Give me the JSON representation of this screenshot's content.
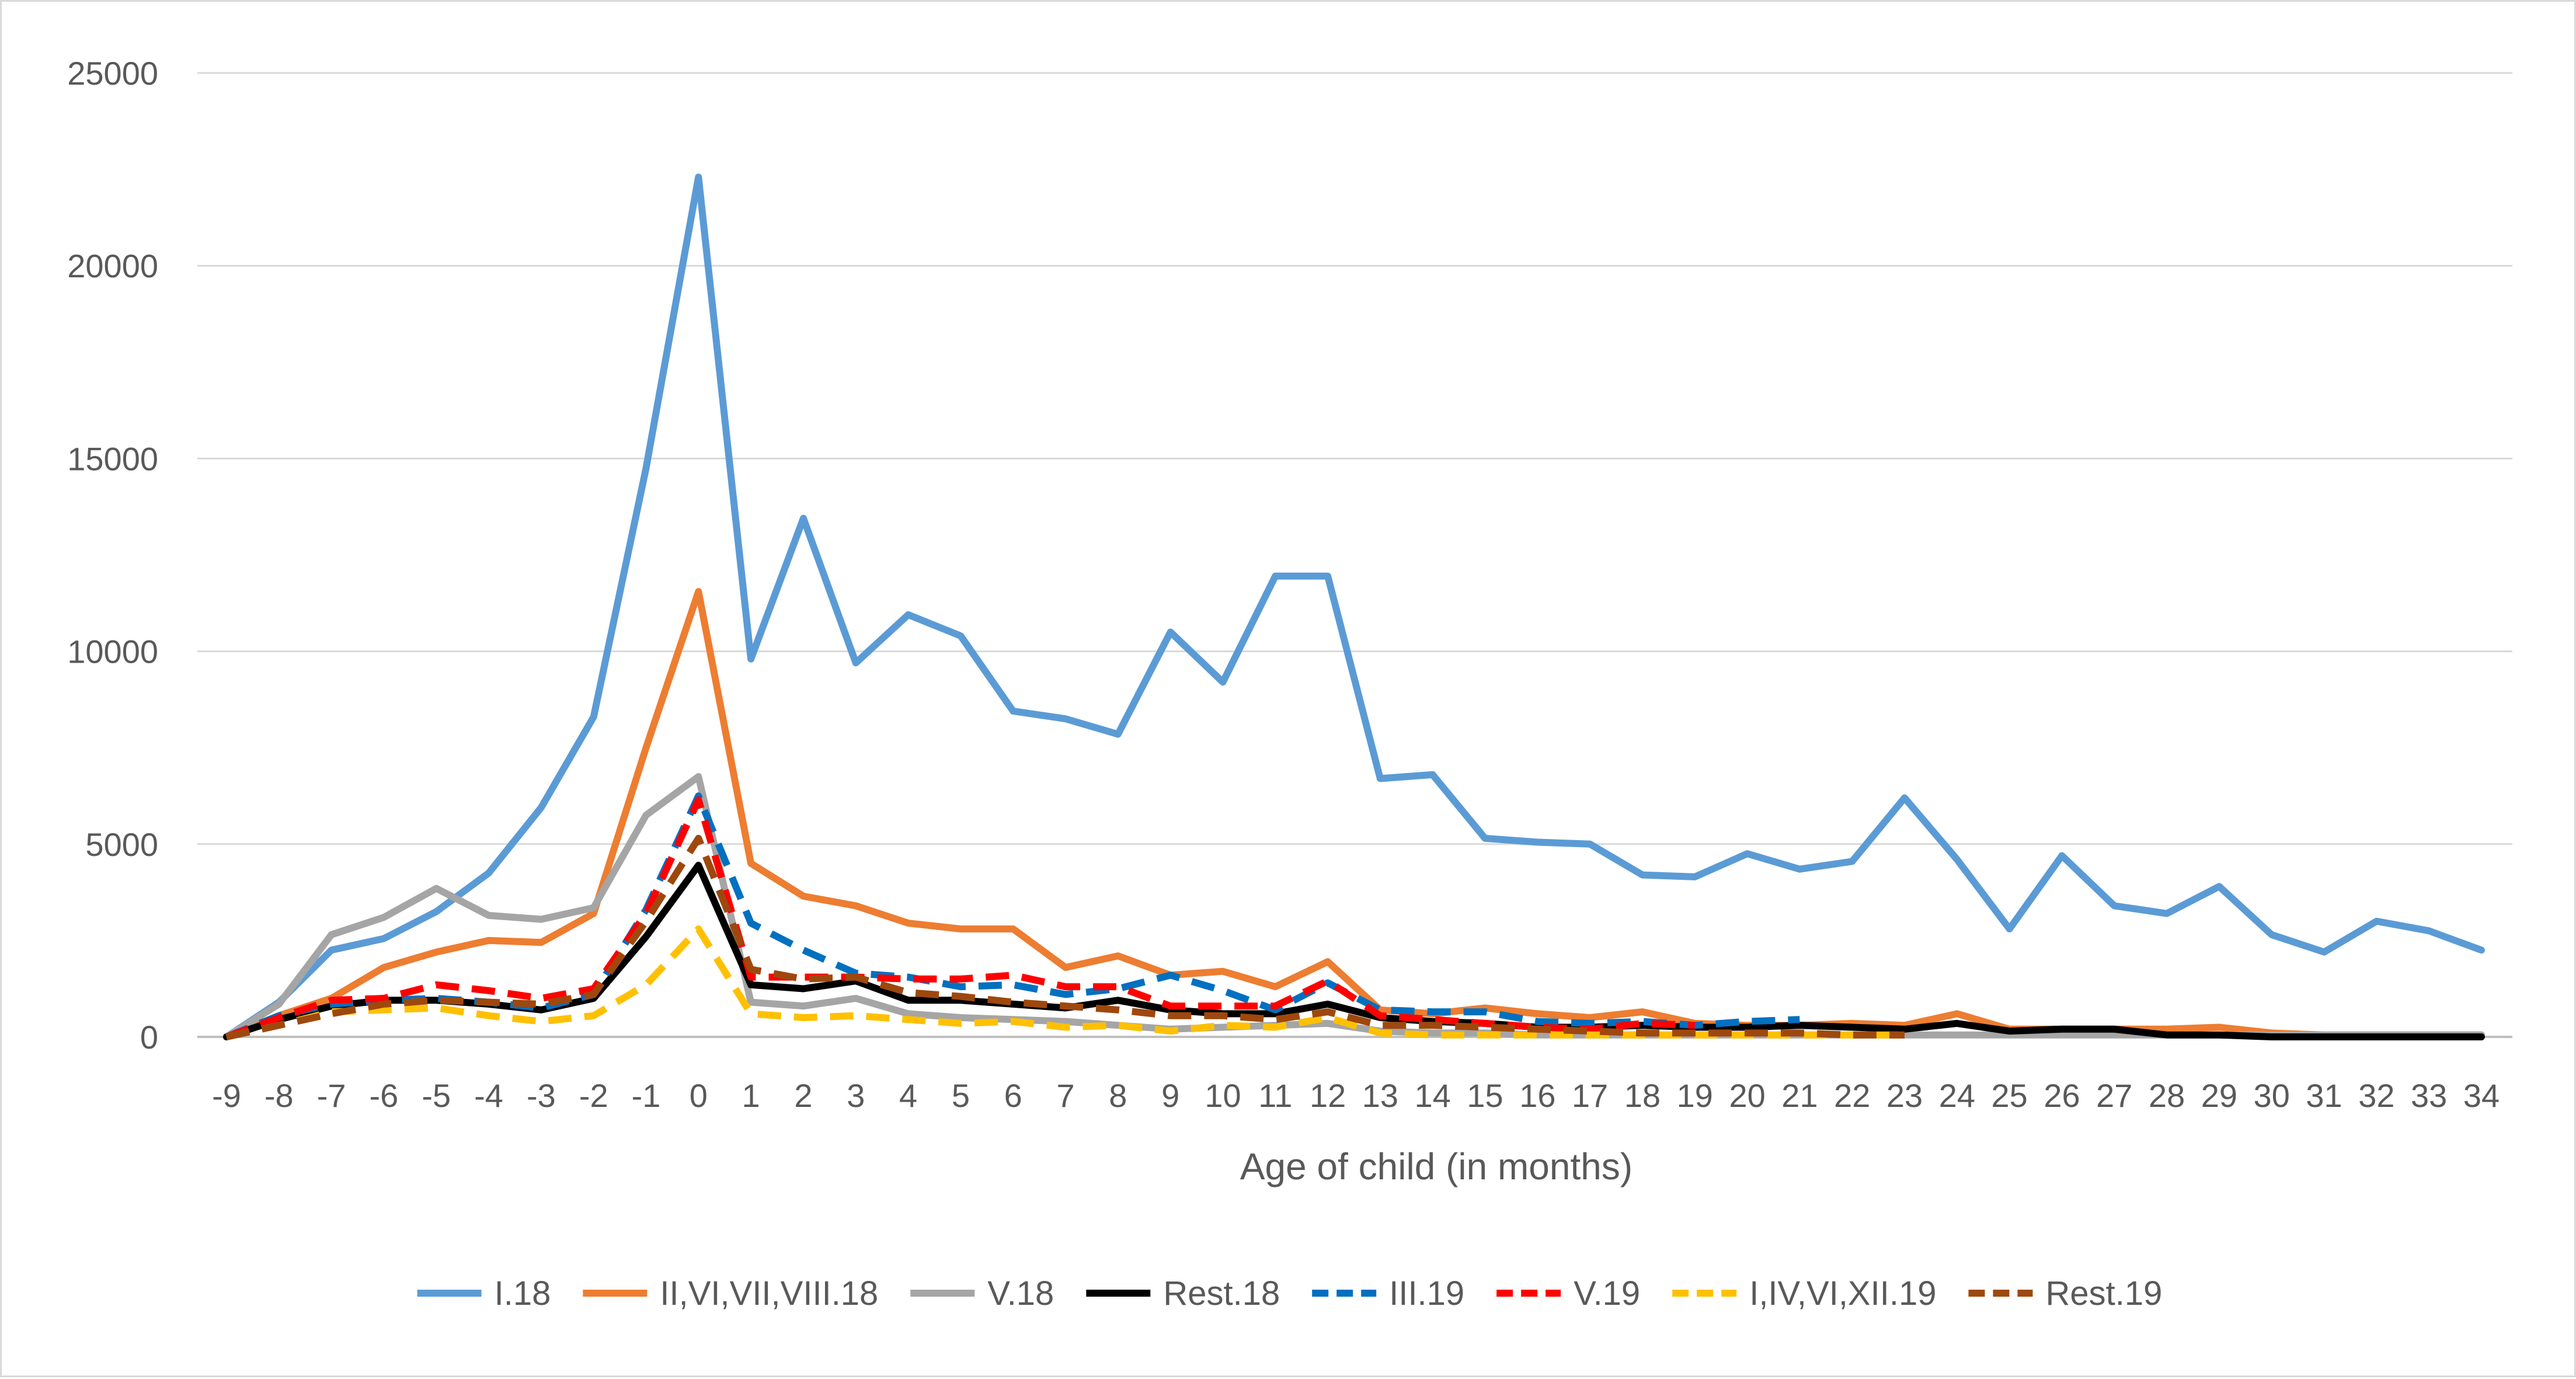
{
  "chart_data": {
    "type": "line",
    "title": "",
    "xlabel": "Age of child (in months)",
    "ylabel": "",
    "x": [
      -9,
      -8,
      -7,
      -6,
      -5,
      -4,
      -3,
      -2,
      -1,
      0,
      1,
      2,
      3,
      4,
      5,
      6,
      7,
      8,
      9,
      10,
      11,
      12,
      13,
      14,
      15,
      16,
      17,
      18,
      19,
      20,
      21,
      22,
      23,
      24,
      25,
      26,
      27,
      28,
      29,
      30,
      31,
      32,
      33,
      34
    ],
    "ylim": [
      0,
      25000
    ],
    "yticks": [
      0,
      5000,
      10000,
      15000,
      20000,
      25000
    ],
    "grid": true,
    "legend_position": "bottom",
    "series": [
      {
        "name": "I.18",
        "color": "#5b9bd5",
        "dash": "solid",
        "values": [
          0,
          900,
          2250,
          2550,
          3250,
          4250,
          5950,
          8300,
          14750,
          22300,
          9800,
          13450,
          9700,
          10950,
          10400,
          8450,
          8250,
          7850,
          10500,
          9200,
          11950,
          11950,
          6700,
          6800,
          5150,
          5050,
          5000,
          4200,
          4150,
          4750,
          4350,
          4550,
          6200,
          4600,
          2800,
          4700,
          3400,
          3200,
          3900,
          2650,
          2200,
          3000,
          2750,
          2250
        ]
      },
      {
        "name": "II,VI,VII,VIII.18",
        "color": "#ed7d31",
        "dash": "solid",
        "values": [
          0,
          550,
          1000,
          1800,
          2200,
          2500,
          2450,
          3200,
          7500,
          11550,
          4500,
          3650,
          3400,
          2950,
          2800,
          2800,
          1800,
          2100,
          1600,
          1700,
          1300,
          1950,
          700,
          600,
          750,
          600,
          500,
          650,
          350,
          300,
          300,
          350,
          300,
          600,
          200,
          200,
          200,
          200,
          250,
          100,
          50,
          50,
          50,
          50
        ]
      },
      {
        "name": "V.18",
        "color": "#a5a5a5",
        "dash": "solid",
        "values": [
          0,
          850,
          2650,
          3100,
          3850,
          3150,
          3050,
          3350,
          5750,
          6750,
          900,
          800,
          1000,
          600,
          500,
          450,
          400,
          300,
          200,
          250,
          300,
          350,
          150,
          100,
          100,
          50,
          50,
          50,
          50,
          50,
          50,
          50,
          50,
          50,
          50,
          50,
          50,
          50,
          50,
          50,
          50,
          50,
          50,
          50
        ]
      },
      {
        "name": "Rest.18",
        "color": "#000000",
        "dash": "solid",
        "values": [
          0,
          450,
          800,
          950,
          950,
          850,
          700,
          1000,
          2600,
          4450,
          1350,
          1250,
          1450,
          950,
          950,
          850,
          750,
          950,
          700,
          600,
          600,
          850,
          500,
          400,
          350,
          250,
          250,
          300,
          250,
          250,
          300,
          250,
          200,
          350,
          150,
          200,
          200,
          50,
          50,
          0,
          0,
          0,
          0,
          0
        ]
      },
      {
        "name": "III.19",
        "color": "#0070c0",
        "dash": "dashed",
        "values": [
          0,
          550,
          850,
          950,
          1000,
          900,
          750,
          1100,
          3300,
          6250,
          2950,
          2250,
          1650,
          1550,
          1300,
          1350,
          1100,
          1250,
          1600,
          1200,
          700,
          1400,
          700,
          650,
          650,
          400,
          350,
          400,
          300,
          400,
          450,
          null,
          null,
          null,
          null,
          null,
          null,
          null,
          null,
          null,
          null,
          null,
          null,
          null
        ]
      },
      {
        "name": "V.19",
        "color": "#ff0000",
        "dash": "dashed",
        "values": [
          0,
          500,
          950,
          1000,
          1350,
          1200,
          1000,
          1250,
          3200,
          6150,
          1550,
          1550,
          1550,
          1500,
          1500,
          1600,
          1300,
          1300,
          800,
          800,
          800,
          1450,
          550,
          450,
          350,
          250,
          200,
          350,
          300,
          null,
          null,
          null,
          null,
          null,
          null,
          null,
          null,
          null,
          null,
          null,
          null,
          null,
          null,
          null
        ]
      },
      {
        "name": "I,IV,VI,XII.19",
        "color": "#ffc000",
        "dash": "dashed",
        "values": [
          0,
          300,
          650,
          700,
          750,
          550,
          400,
          550,
          1350,
          2800,
          600,
          500,
          550,
          450,
          350,
          400,
          250,
          300,
          150,
          300,
          250,
          500,
          100,
          50,
          50,
          50,
          50,
          50,
          50,
          50,
          50,
          50,
          50,
          null,
          null,
          null,
          null,
          null,
          null,
          null,
          null,
          null,
          null,
          null
        ]
      },
      {
        "name": "Rest.19",
        "color": "#9e480e",
        "dash": "dashed",
        "values": [
          0,
          300,
          600,
          850,
          950,
          900,
          850,
          1100,
          3000,
          5150,
          1750,
          1500,
          1550,
          1150,
          1050,
          900,
          800,
          700,
          550,
          550,
          450,
          650,
          300,
          300,
          250,
          200,
          150,
          100,
          100,
          100,
          100,
          50,
          50,
          null,
          null,
          null,
          null,
          null,
          null,
          null,
          null,
          null,
          null,
          null
        ]
      }
    ]
  }
}
